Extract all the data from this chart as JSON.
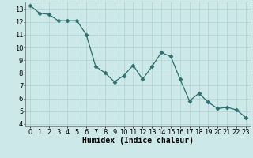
{
  "x": [
    0,
    1,
    2,
    3,
    4,
    5,
    6,
    7,
    8,
    9,
    10,
    11,
    12,
    13,
    14,
    15,
    16,
    17,
    18,
    19,
    20,
    21,
    22,
    23
  ],
  "y": [
    13.3,
    12.7,
    12.6,
    12.1,
    12.1,
    12.1,
    11.0,
    8.5,
    8.0,
    7.3,
    7.8,
    8.6,
    7.5,
    8.5,
    9.6,
    9.3,
    7.5,
    5.8,
    6.4,
    5.7,
    5.2,
    5.3,
    5.1,
    4.5
  ],
  "line_color": "#2d6e6e",
  "marker": "D",
  "marker_size": 2.5,
  "bg_color": "#cce8e8",
  "grid_color": "#b0d0d0",
  "xlabel": "Humidex (Indice chaleur)",
  "xlim": [
    -0.5,
    23.5
  ],
  "ylim": [
    3.8,
    13.6
  ],
  "yticks": [
    4,
    5,
    6,
    7,
    8,
    9,
    10,
    11,
    12,
    13
  ],
  "xticks": [
    0,
    1,
    2,
    3,
    4,
    5,
    6,
    7,
    8,
    9,
    10,
    11,
    12,
    13,
    14,
    15,
    16,
    17,
    18,
    19,
    20,
    21,
    22,
    23
  ],
  "xlabel_fontsize": 7,
  "tick_fontsize": 6
}
